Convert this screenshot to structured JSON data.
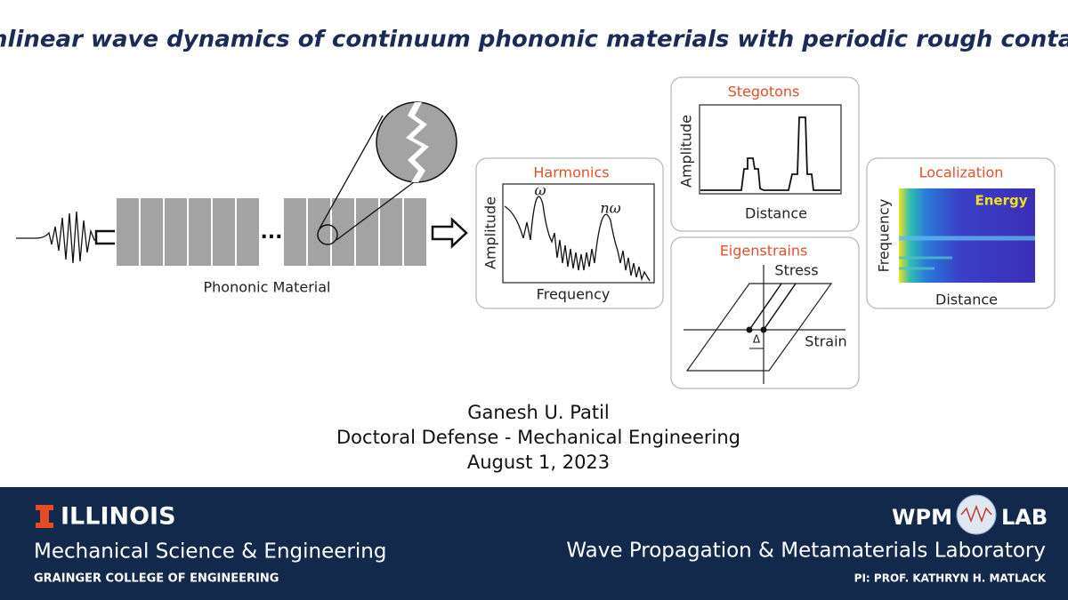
{
  "title": "Nonlinear wave dynamics of continuum phononic materials with periodic rough contacts",
  "material": {
    "label": "Phononic Material",
    "ellipsis": "..."
  },
  "panels": {
    "harmonics": {
      "title": "Harmonics",
      "peak1": "ω",
      "peak2": "nω",
      "ylabel": "Amplitude",
      "xlabel": "Frequency"
    },
    "stegotons": {
      "title": "Stegotons",
      "ylabel": "Amplitude",
      "xlabel": "Distance"
    },
    "eigenstrains": {
      "title": "Eigenstrains",
      "ylabel": "Stress",
      "xlabel": "Strain",
      "delta": "Δ"
    },
    "localization": {
      "title": "Localization",
      "legend": "Energy",
      "ylabel": "Frequency",
      "xlabel": "Distance"
    }
  },
  "presenter": {
    "name": "Ganesh U. Patil",
    "event": "Doctoral Defense - Mechanical Engineering",
    "date": "August 1, 2023"
  },
  "footer": {
    "university": "ILLINOIS",
    "department": "Mechanical Science & Engineering",
    "college": "GRAINGER COLLEGE OF ENGINEERING",
    "lab_left": "WPM",
    "lab_right": "LAB",
    "lab_name": "Wave Propagation & Metamaterials Laboratory",
    "pi": "PI: PROF. KATHRYN H. MATLACK"
  }
}
